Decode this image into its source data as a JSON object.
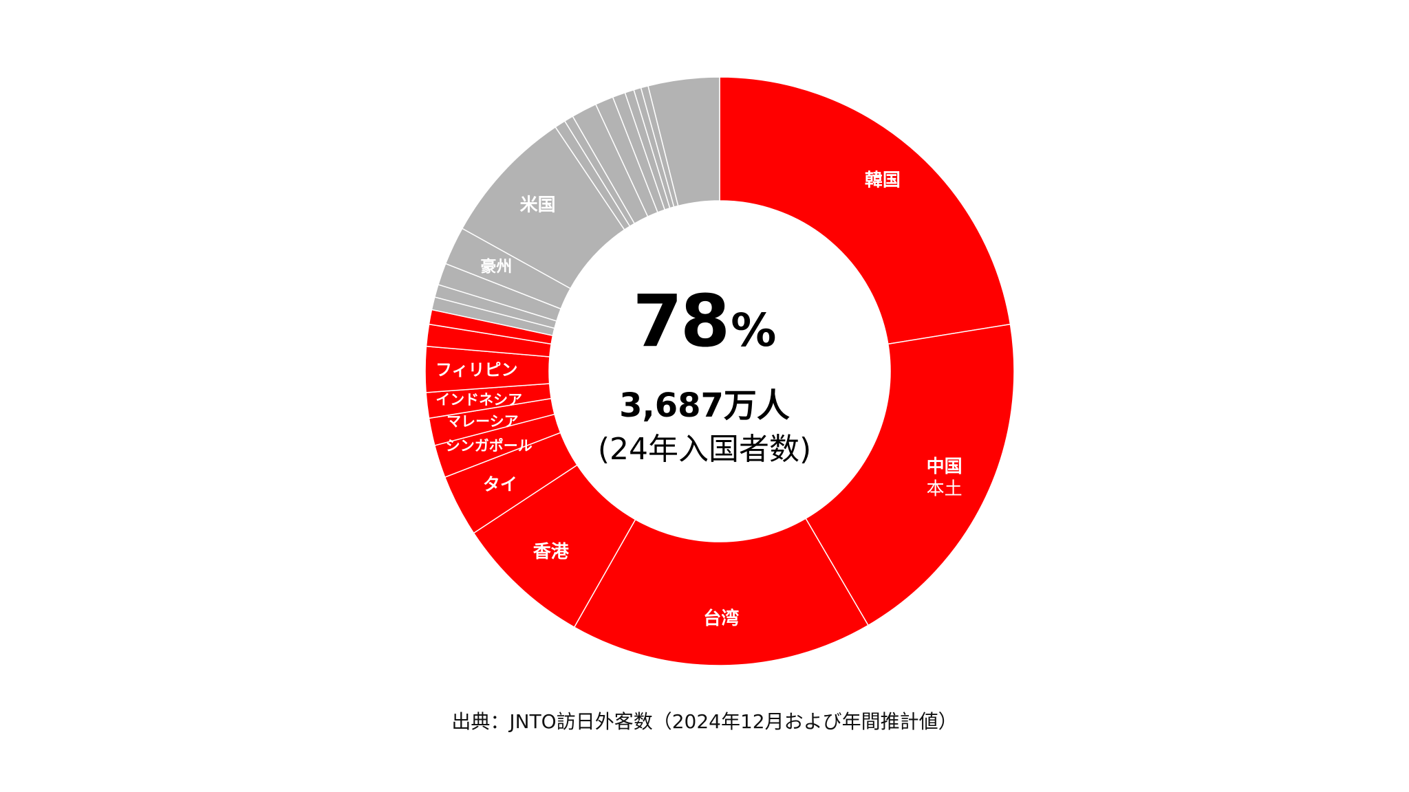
{
  "chart_data": {
    "type": "pie",
    "variant": "donut",
    "slices": [
      {
        "label": "韓国",
        "value": 22.4,
        "color": "#ff0000"
      },
      {
        "label": "中国\n本土",
        "value": 19.1,
        "color": "#ff0000"
      },
      {
        "label": "台湾",
        "value": 16.6,
        "color": "#ff0000"
      },
      {
        "label": "香港",
        "value": 7.5,
        "color": "#ff0000"
      },
      {
        "label": "タイ",
        "value": 3.4,
        "color": "#ff0000"
      },
      {
        "label": "シンガポール",
        "value": 1.8,
        "color": "#ff0000"
      },
      {
        "label": "マレーシア",
        "value": 1.5,
        "color": "#ff0000"
      },
      {
        "label": "インドネシア",
        "value": 1.4,
        "color": "#ff0000"
      },
      {
        "label": "フィリピン",
        "value": 2.5,
        "color": "#ff0000"
      },
      {
        "label": "",
        "value": 1.2,
        "color": "#ff0000"
      },
      {
        "label": "",
        "value": 0.8,
        "color": "#ff0000"
      },
      {
        "label": "",
        "value": 0.7,
        "color": "#b3b3b3"
      },
      {
        "label": "",
        "value": 0.7,
        "color": "#b3b3b3"
      },
      {
        "label": "",
        "value": 1.2,
        "color": "#b3b3b3"
      },
      {
        "label": "豪州",
        "value": 2.1,
        "color": "#b3b3b3"
      },
      {
        "label": "米国",
        "value": 7.5,
        "color": "#b3b3b3"
      },
      {
        "label": "",
        "value": 0.6,
        "color": "#b3b3b3"
      },
      {
        "label": "",
        "value": 0.5,
        "color": "#b3b3b3"
      },
      {
        "label": "",
        "value": 1.4,
        "color": "#b3b3b3"
      },
      {
        "label": "",
        "value": 1.0,
        "color": "#b3b3b3"
      },
      {
        "label": "",
        "value": 0.7,
        "color": "#b3b3b3"
      },
      {
        "label": "",
        "value": 0.5,
        "color": "#b3b3b3"
      },
      {
        "label": "",
        "value": 0.4,
        "color": "#b3b3b3"
      },
      {
        "label": "",
        "value": 0.4,
        "color": "#b3b3b3"
      },
      {
        "label": "",
        "value": 3.9,
        "color": "#b3b3b3"
      }
    ],
    "colors": {
      "highlight": "#ff0000",
      "other": "#b3b3b3",
      "separator": "#ffffff"
    },
    "center": {
      "percent": "78",
      "percent_unit": "%",
      "total": "3,687万人",
      "subtitle": "(24年入国者数)"
    },
    "source": "出典：JNTO訪日外客数（2024年12月および年間推計値）"
  }
}
